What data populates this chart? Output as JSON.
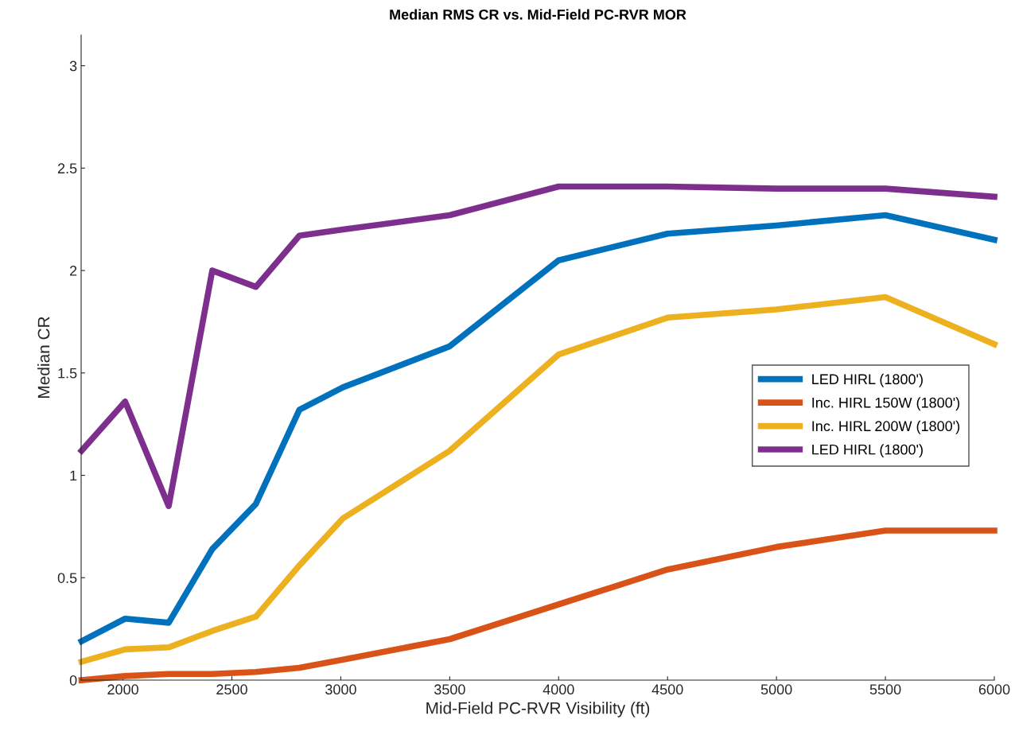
{
  "chart_data": {
    "type": "line",
    "title": "Median RMS CR vs. Mid-Field PC-RVR MOR",
    "xlabel": "Mid-Field PC-RVR Visibility (ft)",
    "ylabel": "Median CR",
    "x": [
      1810,
      2010,
      2210,
      2410,
      2610,
      2810,
      3010,
      3500,
      4000,
      4500,
      5000,
      5500,
      6000
    ],
    "series": [
      {
        "name": "LED HIRL (1800')",
        "color": "#0072bd",
        "values": [
          0.19,
          0.3,
          0.28,
          0.64,
          0.86,
          1.32,
          1.43,
          1.63,
          2.05,
          2.18,
          2.22,
          2.27,
          2.15
        ]
      },
      {
        "name": "Inc. HIRL 150W (1800')",
        "color": "#d95319",
        "values": [
          0.0,
          0.02,
          0.03,
          0.03,
          0.04,
          0.06,
          0.1,
          0.2,
          0.37,
          0.54,
          0.65,
          0.73,
          0.73
        ]
      },
      {
        "name": "Inc. HIRL 200W (1800')",
        "color": "#edb120",
        "values": [
          0.09,
          0.15,
          0.16,
          0.24,
          0.31,
          0.56,
          0.79,
          1.12,
          1.59,
          1.77,
          1.81,
          1.87,
          1.64
        ]
      },
      {
        "name": "LED HIRL (1800')",
        "color": "#7e2f8e",
        "values": [
          1.12,
          1.36,
          0.85,
          2.0,
          1.92,
          2.17,
          2.2,
          2.27,
          2.41,
          2.41,
          2.4,
          2.4,
          2.36
        ]
      }
    ],
    "xlim": [
      1808,
      6000
    ],
    "xticks": [
      2000,
      2500,
      3000,
      3500,
      4000,
      4500,
      5000,
      5500,
      6000
    ],
    "ylim": [
      0,
      3.15
    ],
    "yticks": [
      0,
      0.5,
      1,
      1.5,
      2,
      2.5,
      3
    ],
    "grid": false,
    "legend": "right",
    "marker": "none",
    "line_style": "solid"
  }
}
